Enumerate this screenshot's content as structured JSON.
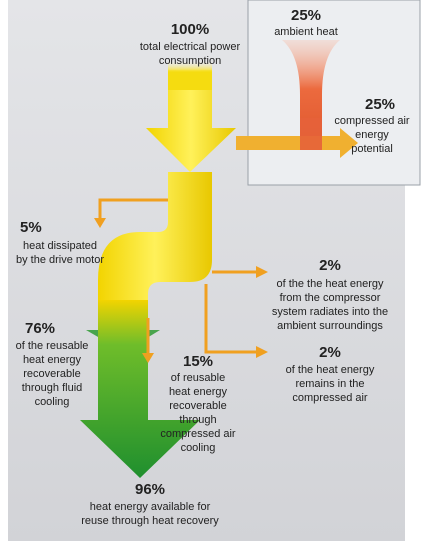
{
  "inset": [
    {
      "value": "25%",
      "lines": [
        "ambient heat"
      ]
    },
    {
      "value": "25%",
      "lines": [
        "compressed air",
        "energy",
        "potential"
      ]
    }
  ],
  "blocks": [
    {
      "value": "100%",
      "lines": [
        "total electrical power",
        "consumption"
      ]
    },
    {
      "value": "5%",
      "lines": [
        "heat dissipated",
        "by the drive motor"
      ]
    },
    {
      "value": "2%",
      "lines": [
        "of the the heat energy",
        "from the compressor",
        "system radiates into the",
        "ambient surroundings"
      ]
    },
    {
      "value": "76%",
      "lines": [
        "of the reusable",
        "heat energy",
        "recoverable",
        "through fluid",
        "cooling"
      ]
    },
    {
      "value": "15%",
      "lines": [
        "of reusable",
        "heat energy",
        "recoverable",
        "through",
        "compressed air",
        "cooling"
      ]
    },
    {
      "value": "2%",
      "lines": [
        "of the heat energy",
        "remains in the",
        "compressed air"
      ]
    },
    {
      "value": "96%",
      "lines": [
        "heat energy available for",
        "reuse through heat recovery"
      ]
    }
  ]
}
